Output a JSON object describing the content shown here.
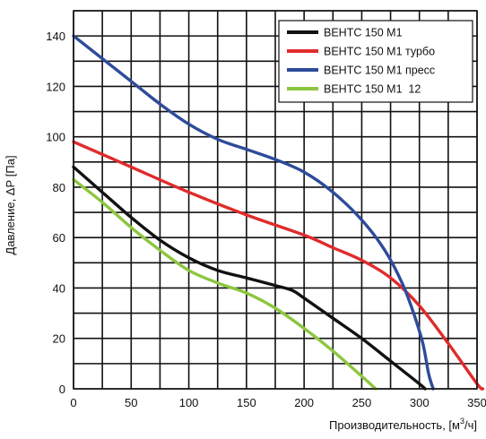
{
  "chart_data": {
    "type": "line",
    "xlabel": "Производительность, [м",
    "xlabel_sup": "3",
    "xlabel_tail": "/ч]",
    "ylabel": "Давление, ΔР [Па]",
    "xlim": [
      0,
      350
    ],
    "ylim": [
      0,
      150
    ],
    "x_ticks": [
      0,
      50,
      100,
      150,
      200,
      250,
      300,
      350
    ],
    "y_ticks": [
      0,
      20,
      40,
      60,
      80,
      100,
      120,
      140
    ],
    "grid": true,
    "minor_grid_step_x": 25,
    "minor_grid_step_y": 10,
    "legend_position": "top-right",
    "series": [
      {
        "name": "ВЕНТС 150 М1",
        "color": "#111111",
        "points": [
          [
            0,
            88
          ],
          [
            25,
            78
          ],
          [
            50,
            68
          ],
          [
            75,
            59
          ],
          [
            100,
            52
          ],
          [
            125,
            47
          ],
          [
            150,
            44
          ],
          [
            175,
            41
          ],
          [
            190,
            39
          ],
          [
            200,
            36
          ],
          [
            225,
            28
          ],
          [
            250,
            20
          ],
          [
            275,
            11
          ],
          [
            300,
            2
          ],
          [
            305,
            0
          ]
        ]
      },
      {
        "name": "ВЕНТС 150 М1 турбо",
        "color": "#e02b2b",
        "points": [
          [
            0,
            98
          ],
          [
            50,
            88
          ],
          [
            100,
            78
          ],
          [
            150,
            69
          ],
          [
            200,
            61
          ],
          [
            225,
            56
          ],
          [
            250,
            51
          ],
          [
            275,
            44
          ],
          [
            300,
            33
          ],
          [
            325,
            18
          ],
          [
            350,
            2
          ],
          [
            355,
            0
          ]
        ]
      },
      {
        "name": "ВЕНТС 150 М1 пресс",
        "color": "#2e4b9b",
        "points": [
          [
            0,
            140
          ],
          [
            50,
            122
          ],
          [
            75,
            113
          ],
          [
            100,
            105
          ],
          [
            125,
            99
          ],
          [
            150,
            95
          ],
          [
            175,
            91
          ],
          [
            200,
            86
          ],
          [
            225,
            78
          ],
          [
            250,
            67
          ],
          [
            270,
            55
          ],
          [
            285,
            42
          ],
          [
            295,
            30
          ],
          [
            303,
            18
          ],
          [
            308,
            6
          ],
          [
            312,
            0
          ]
        ]
      },
      {
        "name": "ВЕНТС 150 М1  12",
        "color": "#8cc63f",
        "points": [
          [
            0,
            83
          ],
          [
            25,
            74
          ],
          [
            50,
            64
          ],
          [
            75,
            55
          ],
          [
            100,
            47
          ],
          [
            125,
            42
          ],
          [
            150,
            38
          ],
          [
            175,
            32
          ],
          [
            200,
            24
          ],
          [
            225,
            15
          ],
          [
            250,
            5
          ],
          [
            262,
            0
          ]
        ]
      }
    ]
  }
}
